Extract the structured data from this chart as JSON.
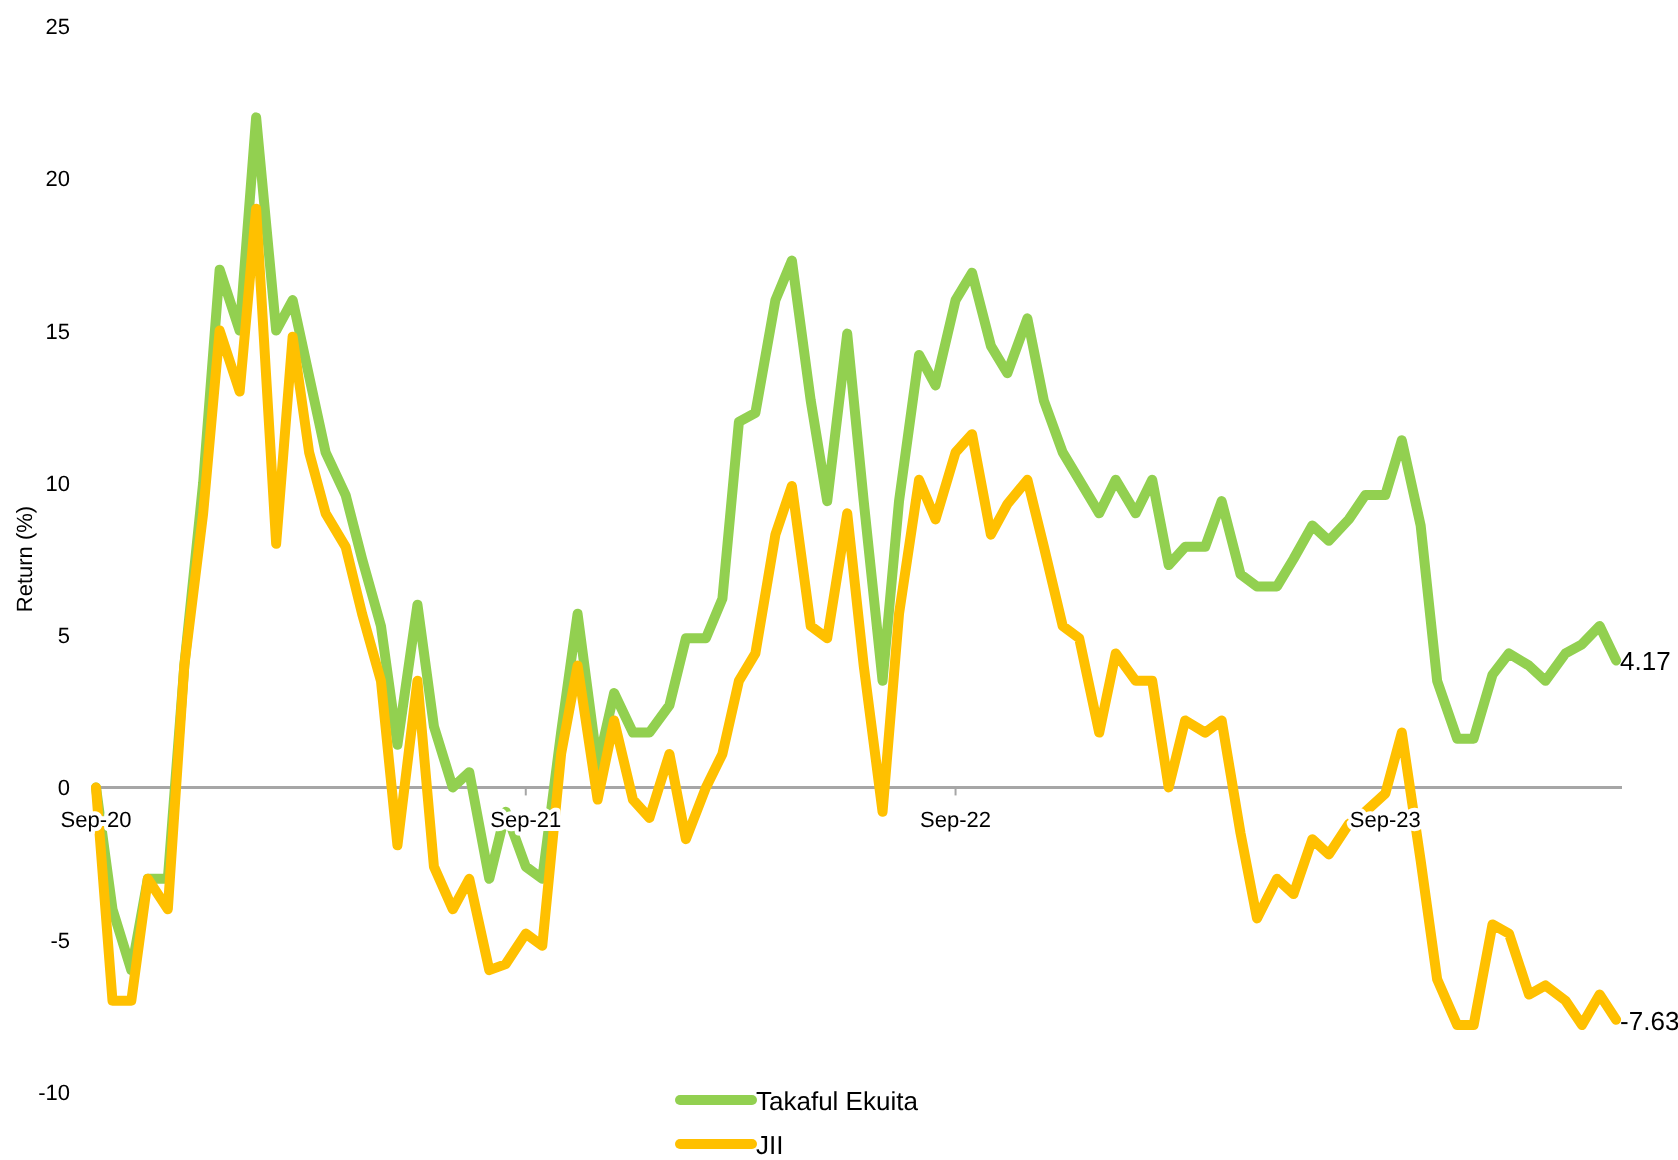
{
  "chart_data": {
    "type": "line",
    "ylabel": "Return (%)",
    "xlim": [
      "2020-09-01",
      "2024-03-20"
    ],
    "xticks": [
      {
        "value": "2020-09-01",
        "label": "Sep-20"
      },
      {
        "value": "2021-09-01",
        "label": "Sep-21"
      },
      {
        "value": "2022-09-01",
        "label": "Sep-22"
      },
      {
        "value": "2023-09-01",
        "label": "Sep-23"
      }
    ],
    "ylim": [
      -10,
      25
    ],
    "yticks": [
      -10,
      -5,
      0,
      5,
      10,
      15,
      20,
      25
    ],
    "grid": false,
    "legend": "bottom",
    "marker": "none",
    "line_style": "solid",
    "x": [
      "2020-09-01",
      "2020-09-15",
      "2020-10-01",
      "2020-10-15",
      "2020-11-01",
      "2020-11-15",
      "2020-12-01",
      "2020-12-15",
      "2021-01-01",
      "2021-01-15",
      "2021-02-01",
      "2021-02-15",
      "2021-03-01",
      "2021-03-15",
      "2021-04-01",
      "2021-04-15",
      "2021-05-01",
      "2021-05-15",
      "2021-06-01",
      "2021-06-15",
      "2021-07-01",
      "2021-07-15",
      "2021-08-01",
      "2021-08-15",
      "2021-09-01",
      "2021-09-15",
      "2021-10-01",
      "2021-10-15",
      "2021-11-01",
      "2021-11-15",
      "2021-12-01",
      "2021-12-15",
      "2022-01-01",
      "2022-01-15",
      "2022-02-01",
      "2022-02-15",
      "2022-03-01",
      "2022-03-15",
      "2022-04-01",
      "2022-04-15",
      "2022-05-01",
      "2022-05-15",
      "2022-06-01",
      "2022-06-15",
      "2022-07-01",
      "2022-07-15",
      "2022-08-01",
      "2022-08-15",
      "2022-09-01",
      "2022-09-15",
      "2022-10-01",
      "2022-10-15",
      "2022-11-01",
      "2022-11-15",
      "2022-12-01",
      "2022-12-15",
      "2023-01-01",
      "2023-01-15",
      "2023-02-01",
      "2023-02-15",
      "2023-03-01",
      "2023-03-15",
      "2023-04-01",
      "2023-04-15",
      "2023-05-01",
      "2023-05-15",
      "2023-06-01",
      "2023-06-15",
      "2023-07-01",
      "2023-07-15",
      "2023-08-01",
      "2023-08-15",
      "2023-09-01",
      "2023-09-15",
      "2023-10-01",
      "2023-10-15",
      "2023-11-01",
      "2023-11-15",
      "2023-12-01",
      "2023-12-15",
      "2024-01-01",
      "2024-01-15",
      "2024-02-01",
      "2024-02-15",
      "2024-03-01",
      "2024-03-15"
    ],
    "series": [
      {
        "name": "Takaful Ekuita",
        "color": "#92d050",
        "values": [
          0,
          -4,
          -6,
          -3,
          -3,
          4,
          10,
          17,
          15,
          22,
          15,
          16,
          13.5,
          11,
          9.6,
          7.5,
          5.3,
          1.4,
          6,
          2,
          0,
          0.5,
          -3,
          -0.8,
          -2.6,
          -3,
          1.8,
          5.7,
          0.7,
          3.1,
          1.8,
          1.8,
          2.7,
          4.9,
          4.9,
          6.2,
          12,
          12.3,
          16,
          17.3,
          12.7,
          9.4,
          14.9,
          9.4,
          3.5,
          9.4,
          14.2,
          13.2,
          16,
          16.9,
          14.5,
          13.6,
          15.4,
          12.7,
          11,
          10.1,
          9,
          10.1,
          9,
          10.1,
          7.3,
          7.9,
          7.9,
          9.4,
          7,
          6.6,
          6.6,
          7.5,
          8.6,
          8.1,
          8.8,
          9.6,
          9.6,
          11.4,
          8.6,
          3.5,
          1.6,
          1.6,
          3.7,
          4.4,
          4,
          3.5,
          4.4,
          4.7,
          5.3,
          4.17
        ]
      },
      {
        "name": "JII",
        "color": "#ffc000",
        "values": [
          0,
          -7,
          -7,
          -3,
          -4,
          4,
          9,
          15,
          13,
          19,
          8,
          14.8,
          11,
          9,
          7.9,
          5.7,
          3.5,
          -1.9,
          3.5,
          -2.6,
          -4,
          -3,
          -6,
          -5.8,
          -4.8,
          -5.2,
          1.1,
          4,
          -0.4,
          2.2,
          -0.4,
          -1,
          1.1,
          -1.7,
          0,
          1.1,
          3.5,
          4.4,
          8.3,
          9.9,
          5.3,
          4.9,
          9,
          4,
          -0.8,
          5.7,
          10.1,
          8.8,
          11,
          11.6,
          8.3,
          9.3,
          10.1,
          7.9,
          5.3,
          4.9,
          1.8,
          4.4,
          3.5,
          3.5,
          0,
          2.2,
          1.8,
          2.2,
          -1.5,
          -4.3,
          -3,
          -3.5,
          -1.7,
          -2.2,
          -1.2,
          -0.8,
          -0.2,
          1.8,
          -2.4,
          -6.3,
          -7.8,
          -7.8,
          -4.5,
          -4.8,
          -6.8,
          -6.5,
          -7,
          -7.8,
          -6.8,
          -7.63
        ]
      }
    ],
    "annotations": [
      {
        "text": "4.17",
        "x": "2024-03-15",
        "y": 4.17
      },
      {
        "text": "-7.63",
        "x": "2024-03-15",
        "y": -7.63
      }
    ]
  }
}
